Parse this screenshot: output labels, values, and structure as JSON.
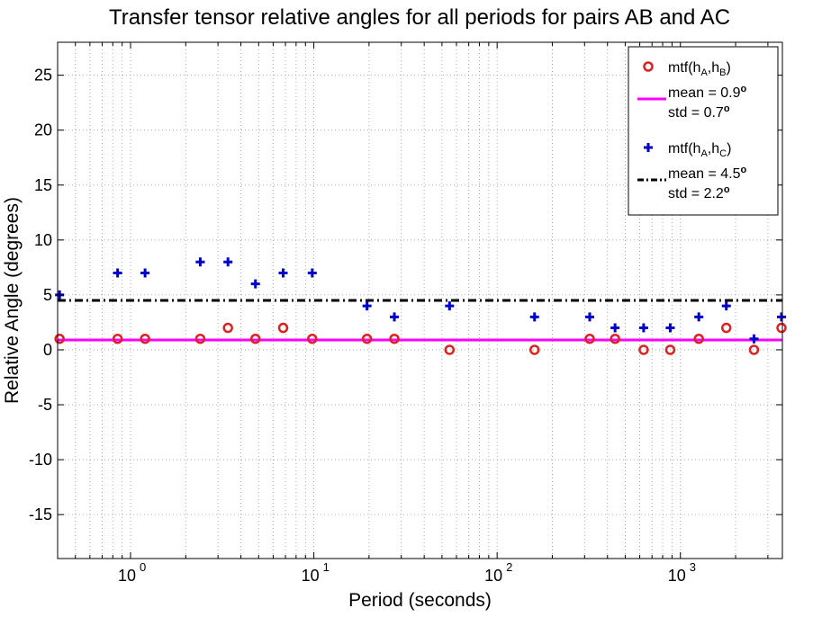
{
  "chart_data": {
    "type": "scatter",
    "title": "Transfer tensor relative angles for all periods for pairs AB and AC",
    "xlabel": "Period (seconds)",
    "ylabel": "Relative Angle (degrees)",
    "xscale": "log",
    "xlim": [
      0.4,
      3600
    ],
    "ylim": [
      -19,
      28
    ],
    "yticks": [
      -15,
      -10,
      -5,
      0,
      5,
      10,
      15,
      20,
      25
    ],
    "xticks": [
      {
        "value": 1,
        "base": "10",
        "exp": "0"
      },
      {
        "value": 10,
        "base": "10",
        "exp": "1"
      },
      {
        "value": 100,
        "base": "10",
        "exp": "2"
      },
      {
        "value": 1000,
        "base": "10",
        "exp": "3"
      }
    ],
    "grid": true,
    "legend_position": "top-right",
    "series": [
      {
        "name": "mtf(hA,hB)",
        "marker": "circle",
        "color": "#dd2222",
        "x": [
          0.41,
          0.85,
          1.2,
          2.4,
          3.4,
          4.8,
          6.8,
          9.8,
          19.5,
          27.5,
          55,
          160,
          320,
          440,
          630,
          880,
          1260,
          1780,
          2520,
          3560
        ],
        "y": [
          1,
          1,
          1,
          1,
          2,
          1,
          2,
          1,
          1,
          1,
          0,
          0,
          1,
          1,
          0,
          0,
          1,
          2,
          0,
          2
        ]
      },
      {
        "name": "mtf(hA,hC)",
        "marker": "plus",
        "color": "#0000cc",
        "x": [
          0.41,
          0.85,
          1.2,
          2.4,
          3.4,
          4.8,
          6.8,
          9.8,
          19.5,
          27.5,
          55,
          160,
          320,
          440,
          630,
          880,
          1260,
          1780,
          2520,
          3560
        ],
        "y": [
          5,
          7,
          7,
          8,
          8,
          6,
          7,
          7,
          4,
          3,
          4,
          3,
          3,
          2,
          2,
          2,
          3,
          4,
          1,
          3
        ]
      }
    ],
    "reference_lines": [
      {
        "y": 0.9,
        "color": "#ff00ff",
        "style": "solid",
        "label_line1": "mean = 0.9",
        "label_line2": "std = 0.7"
      },
      {
        "y": 4.5,
        "color": "#000000",
        "style": "dashdot",
        "label_line1": "mean = 4.5",
        "label_line2": "std = 2.2"
      }
    ],
    "legend_entries": [
      {
        "kind": "marker",
        "series": 0,
        "text": "mtf(h",
        "sub1": "A",
        "mid": ",h",
        "sub2": "B",
        "end": ")"
      },
      {
        "kind": "line",
        "ref": 0
      },
      {
        "kind": "marker",
        "series": 1,
        "text": "mtf(h",
        "sub1": "A",
        "mid": ",h",
        "sub2": "C",
        "end": ")"
      },
      {
        "kind": "line",
        "ref": 1
      }
    ],
    "degree_symbol": "o"
  }
}
